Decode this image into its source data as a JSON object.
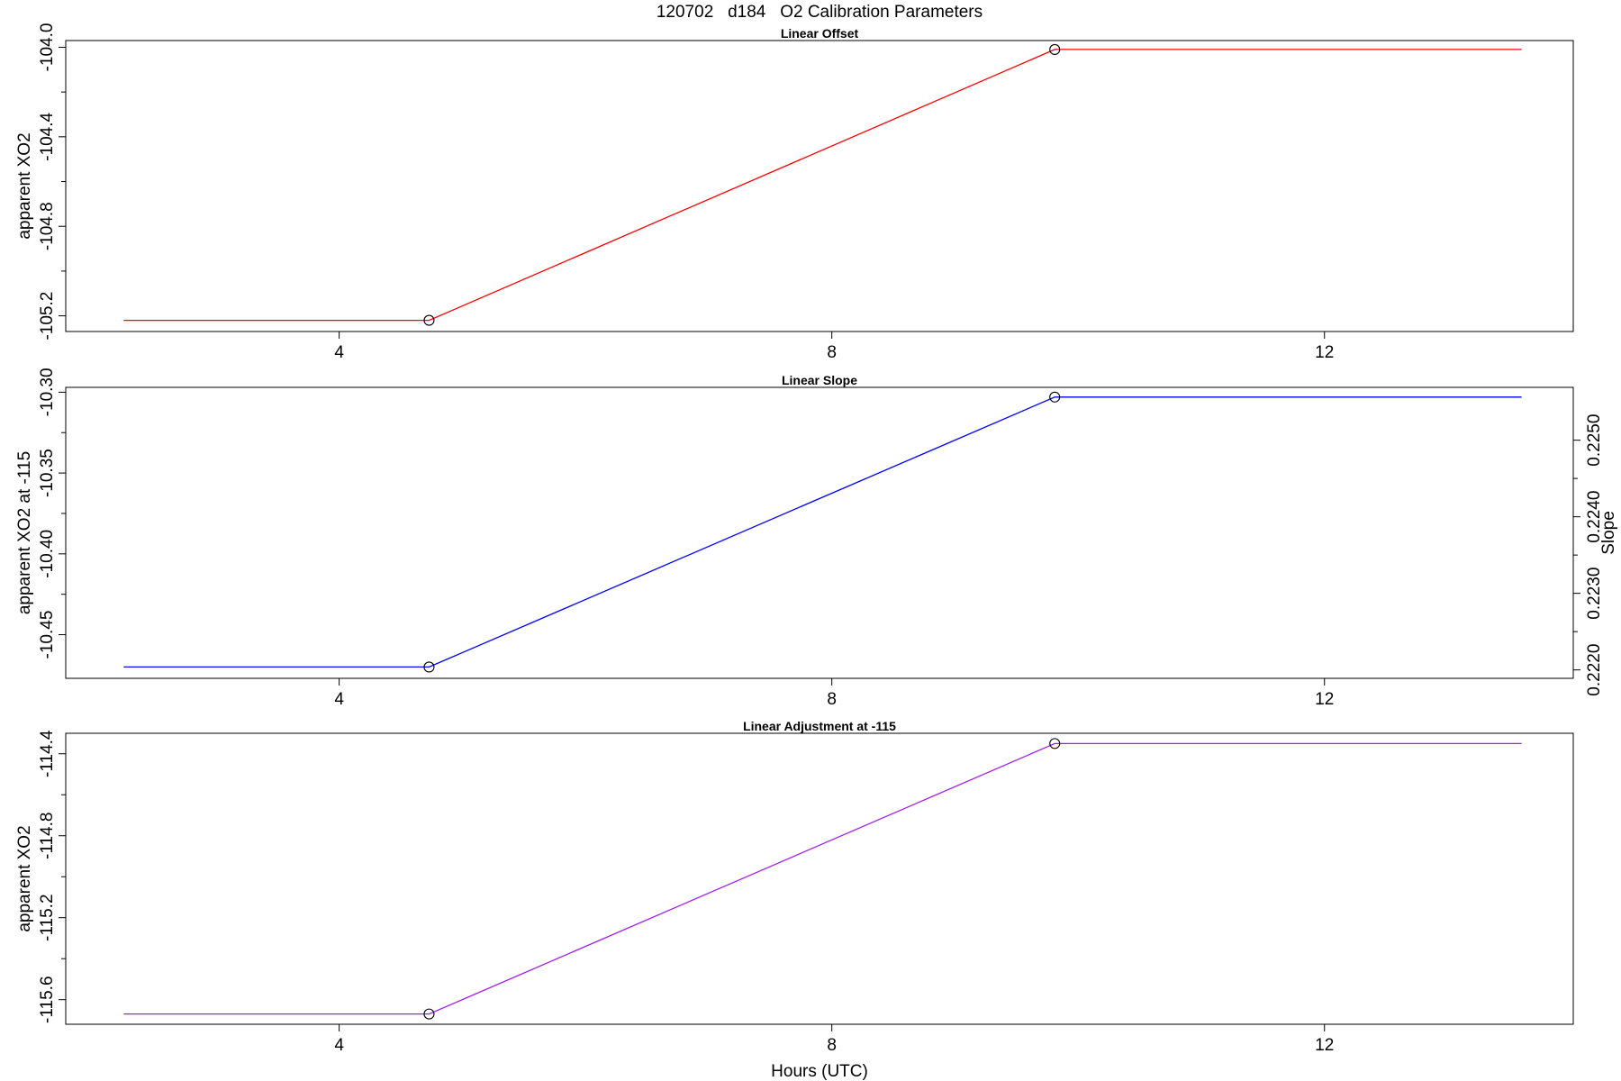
{
  "main_title": "120702   d184   O2 Calibration Parameters",
  "xlabel": "Hours (UTC)",
  "chart_data": [
    {
      "type": "line",
      "title": "Linear Offset",
      "ylabel": "apparent XO2",
      "xlim": [
        1.78,
        14.02
      ],
      "ylim": [
        -105.27,
        -103.97
      ],
      "x_ticks": [
        4,
        8,
        12
      ],
      "y_ticks_major": [
        -104.0,
        -104.4,
        -104.8,
        -105.2
      ],
      "y_ticks_minor": [
        -104.2,
        -104.6,
        -105.0
      ],
      "color": "#ff0000",
      "series": [
        {
          "x": [
            2.25,
            4.73,
            9.81,
            13.6
          ],
          "y": [
            -105.22,
            -105.22,
            -104.01,
            -104.01
          ]
        }
      ],
      "markers": {
        "x": [
          4.73,
          9.81
        ],
        "y": [
          -105.22,
          -104.01
        ]
      }
    },
    {
      "type": "line",
      "title": "Linear Slope",
      "ylabel": "apparent XO2 at -115",
      "ylabel_right": "Slope",
      "xlim": [
        1.78,
        14.02
      ],
      "ylim": [
        -10.477,
        -10.297
      ],
      "x_ticks": [
        4,
        8,
        12
      ],
      "y_ticks_major": [
        -10.3,
        -10.35,
        -10.4,
        -10.45
      ],
      "y_ticks_minor": [
        -10.325,
        -10.375,
        -10.425
      ],
      "y2_lim": [
        0.22189,
        0.22569
      ],
      "y2_ticks_major": [
        0.222,
        0.223,
        0.224,
        0.225
      ],
      "y2_ticks_minor": [
        0.2225,
        0.2235,
        0.2245
      ],
      "color": "#0000ff",
      "series": [
        {
          "x": [
            2.25,
            4.73,
            9.81,
            13.6
          ],
          "y": [
            -10.47,
            -10.47,
            -10.303,
            -10.303
          ]
        }
      ],
      "markers": {
        "x": [
          4.73,
          9.81
        ],
        "y": [
          -10.47,
          -10.303
        ]
      }
    },
    {
      "type": "line",
      "title": "Linear Adjustment at -115",
      "ylabel": "apparent XO2",
      "xlim": [
        1.78,
        14.02
      ],
      "ylim": [
        -115.72,
        -114.3
      ],
      "x_ticks": [
        4,
        8,
        12
      ],
      "y_ticks_major": [
        -114.4,
        -114.8,
        -115.2,
        -115.6
      ],
      "y_ticks_minor": [
        -114.6,
        -115.0,
        -115.4
      ],
      "color": "#a020f0",
      "series": [
        {
          "x": [
            2.25,
            4.73,
            9.81,
            13.6
          ],
          "y": [
            -115.67,
            -115.67,
            -114.35,
            -114.35
          ]
        }
      ],
      "markers": {
        "x": [
          4.73,
          9.81
        ],
        "y": [
          -115.67,
          -114.35
        ]
      }
    }
  ]
}
